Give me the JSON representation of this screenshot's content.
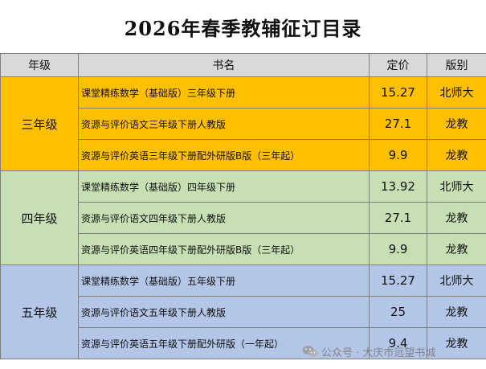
{
  "title": "2026年春季教辅征订目录",
  "headers": {
    "grade": "年级",
    "book": "书名",
    "price": "定价",
    "publisher": "版别"
  },
  "groups": [
    {
      "grade": "三年级",
      "rows": [
        {
          "book": "课堂精练数学（基础版）三年级下册",
          "price": "15.27",
          "publisher": "北师大"
        },
        {
          "book": "资源与评价语文三年级下册人教版",
          "price": "27.1",
          "publisher": "龙教"
        },
        {
          "book": "资源与评价英语三年级下册配外研版B版（三年起）",
          "price": "9.9",
          "publisher": "龙教"
        }
      ]
    },
    {
      "grade": "四年级",
      "rows": [
        {
          "book": "课堂精练数学（基础版）四年级下册",
          "price": "13.92",
          "publisher": "北师大"
        },
        {
          "book": "资源与评价语文四年级下册人教版",
          "price": "27.1",
          "publisher": "龙教"
        },
        {
          "book": "资源与评价英语四年级下册配外研版B版（三年起）",
          "price": "9.9",
          "publisher": "龙教"
        }
      ]
    },
    {
      "grade": "五年级",
      "rows": [
        {
          "book": "课堂精练数学（基础版）五年级下册",
          "price": "15.27",
          "publisher": "北师大"
        },
        {
          "book": "资源与评价语文五年级下册人教版",
          "price": "25",
          "publisher": "龙教"
        },
        {
          "book": "资源与评价英语五年级下册配外研版（一年起）",
          "price": "9.4",
          "publisher": "龙教"
        }
      ]
    }
  ],
  "watermark": {
    "icon": "wechat-icon",
    "text": "公众号 · 大庆市远望书城"
  }
}
